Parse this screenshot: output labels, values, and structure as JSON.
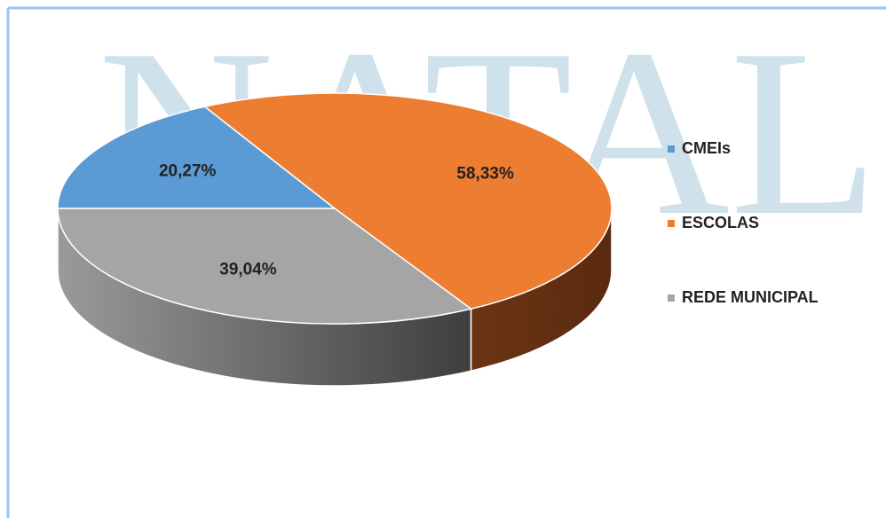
{
  "watermark": "NATAL",
  "chart_data": {
    "type": "pie3d",
    "categories": [
      "CMEIs",
      "ESCOLAS",
      "REDE MUNICIPAL"
    ],
    "values": [
      20.27,
      58.33,
      39.04
    ],
    "value_labels": [
      "20,27%",
      "58,33%",
      "39,04%"
    ],
    "colors": [
      "#5b9bd5",
      "#ed7d31",
      "#a5a5a5"
    ],
    "legend": "right"
  }
}
